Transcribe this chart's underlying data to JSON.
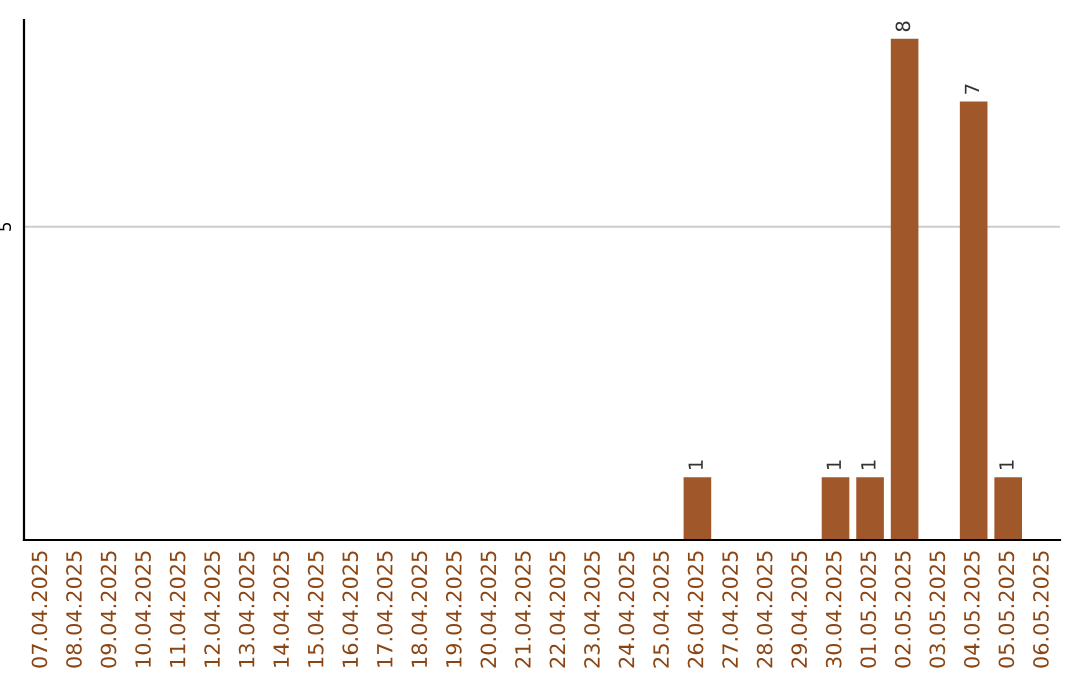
{
  "chart_data": {
    "type": "bar",
    "categories": [
      "07.04.2025",
      "08.04.2025",
      "09.04.2025",
      "10.04.2025",
      "11.04.2025",
      "12.04.2025",
      "13.04.2025",
      "14.04.2025",
      "15.04.2025",
      "16.04.2025",
      "17.04.2025",
      "18.04.2025",
      "19.04.2025",
      "20.04.2025",
      "21.04.2025",
      "22.04.2025",
      "23.04.2025",
      "24.04.2025",
      "25.04.2025",
      "26.04.2025",
      "27.04.2025",
      "28.04.2025",
      "29.04.2025",
      "30.04.2025",
      "01.05.2025",
      "02.05.2025",
      "03.05.2025",
      "04.05.2025",
      "05.05.2025",
      "06.05.2025"
    ],
    "values": [
      null,
      null,
      null,
      null,
      null,
      null,
      null,
      null,
      null,
      null,
      null,
      null,
      null,
      null,
      null,
      null,
      null,
      null,
      null,
      1,
      null,
      null,
      null,
      1,
      1,
      8,
      null,
      7,
      1,
      null
    ],
    "color": "#a0572a",
    "ylim": [
      0,
      8.3
    ],
    "yticks": [
      5
    ],
    "grid": "y",
    "data_labels": true
  }
}
